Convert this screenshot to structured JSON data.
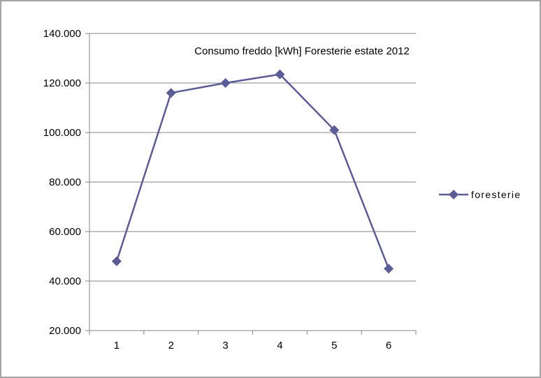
{
  "chart_data": {
    "type": "line",
    "title": "Consumo freddo [kWh] Foresterie estate 2012",
    "xlabel": "",
    "ylabel": "",
    "categories": [
      "1",
      "2",
      "3",
      "4",
      "5",
      "6"
    ],
    "ylim": [
      20000,
      140000
    ],
    "yticks": [
      20000,
      40000,
      60000,
      80000,
      100000,
      120000,
      140000
    ],
    "ytick_labels": [
      "20.000",
      "40.000",
      "60.000",
      "80.000",
      "100.000",
      "120.000",
      "140.000"
    ],
    "grid": "horizontal",
    "legend_position": "right",
    "series": [
      {
        "name": "foresterie",
        "values": [
          48000,
          116000,
          120000,
          123500,
          101000,
          45000
        ],
        "color": "#5B5B97",
        "marker": "diamond"
      }
    ]
  }
}
